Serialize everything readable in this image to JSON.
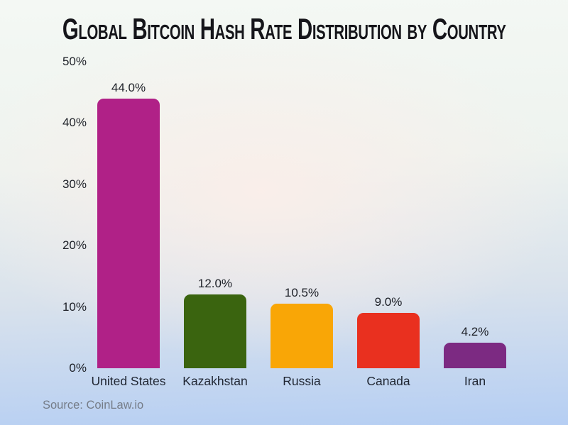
{
  "title": "Global Bitcoin Hash Rate Distribution by Country",
  "source_note": "Source: CoinLaw.io",
  "chart_data": {
    "type": "bar",
    "title": "Global Bitcoin Hash Rate Distribution by Country",
    "categories": [
      "United States",
      "Kazakhstan",
      "Russia",
      "Canada",
      "Iran"
    ],
    "values": [
      44.0,
      12.0,
      10.5,
      9.0,
      4.2
    ],
    "value_labels": [
      "44.0%",
      "12.0%",
      "10.5%",
      "9.0%",
      "4.2%"
    ],
    "bar_colors": [
      "#b02187",
      "#3a640f",
      "#f9a606",
      "#e9301f",
      "#7c2a82"
    ],
    "xlabel": "",
    "ylabel": "",
    "ylim": [
      0,
      50
    ],
    "yticks": [
      0,
      10,
      20,
      30,
      40,
      50
    ],
    "ytick_labels": [
      "0%",
      "10%",
      "20%",
      "30%",
      "40%",
      "50%"
    ],
    "grid": false,
    "legend": false,
    "annotations": [
      "Source: CoinLaw.io"
    ]
  },
  "colors": {
    "title_text": "#15151a",
    "axis_text": "#1e2128",
    "category_text": "#1f2531",
    "source_text": "#757c87",
    "background_top": "#f4f8f4",
    "background_center_blush": "#fbeee9",
    "background_bottom": "#b5cef3"
  }
}
